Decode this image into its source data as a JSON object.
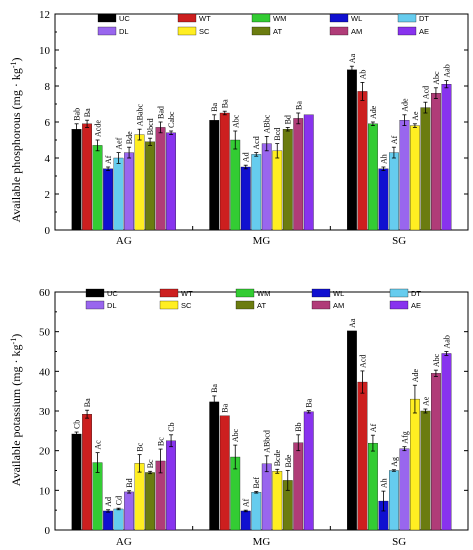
{
  "colors": {
    "UC": "#000000",
    "WT": "#cc1f1f",
    "WM": "#33cc33",
    "WL": "#1010d0",
    "DT": "#66ccee",
    "DL": "#9966ee",
    "SC": "#ffee22",
    "AT": "#6b7c10",
    "AM": "#b03c78",
    "AE": "#8833ee"
  },
  "chart_data": [
    {
      "type": "bar",
      "ylabel_main": "Available phosphorous (mg",
      "ylabel_unit": "kg",
      "ylabel_sup": "-1",
      "ylim": [
        0,
        12
      ],
      "yticks": [
        "0",
        "2",
        "4",
        "6",
        "8",
        "10",
        "12"
      ],
      "categories": [
        "AG",
        "MG",
        "SG"
      ],
      "legend": [
        "UC",
        "WT",
        "WM",
        "WL",
        "DT",
        "DL",
        "SC",
        "AT",
        "AM",
        "AE"
      ],
      "series": [
        {
          "name": "UC",
          "values": [
            5.6,
            6.1,
            8.9
          ],
          "errors": [
            0.3,
            0.3,
            0.2
          ],
          "labels": [
            "Bab",
            "Ba",
            "Aa"
          ]
        },
        {
          "name": "WT",
          "values": [
            5.9,
            6.5,
            7.7
          ],
          "errors": [
            0.2,
            0.1,
            0.5
          ],
          "labels": [
            "Ba",
            "Ba",
            "Ab"
          ]
        },
        {
          "name": "WM",
          "values": [
            4.7,
            5.0,
            5.9
          ],
          "errors": [
            0.3,
            0.5,
            0.1
          ],
          "labels": [
            "Acde",
            "Abc",
            "Ade"
          ]
        },
        {
          "name": "WL",
          "values": [
            3.4,
            3.5,
            3.4
          ],
          "errors": [
            0.1,
            0.1,
            0.1
          ],
          "labels": [
            "Af",
            "Ad",
            "Ah"
          ]
        },
        {
          "name": "DT",
          "values": [
            4.0,
            4.2,
            4.3
          ],
          "errors": [
            0.3,
            0.1,
            0.3
          ],
          "labels": [
            "Aef",
            "Acd",
            "Af"
          ]
        },
        {
          "name": "DL",
          "values": [
            4.3,
            4.8,
            6.1
          ],
          "errors": [
            0.3,
            0.4,
            0.3
          ],
          "labels": [
            "Bde",
            "ABbc",
            "Ade"
          ]
        },
        {
          "name": "SC",
          "values": [
            5.3,
            4.4,
            5.8
          ],
          "errors": [
            0.3,
            0.4,
            0.1
          ],
          "labels": [
            "ABabc",
            "Bcd",
            "Ae"
          ]
        },
        {
          "name": "AT",
          "values": [
            4.9,
            5.6,
            6.8
          ],
          "errors": [
            0.2,
            0.1,
            0.3
          ],
          "labels": [
            "Bbcd",
            "Bd",
            "Acd"
          ]
        },
        {
          "name": "AM",
          "values": [
            5.7,
            6.2,
            7.6
          ],
          "errors": [
            0.3,
            0.3,
            0.3
          ],
          "labels": [
            "Bad",
            "Ba",
            "Abc"
          ]
        },
        {
          "name": "AE",
          "values": [
            5.4,
            6.4,
            8.1
          ],
          "errors": [
            0.1,
            0.0,
            0.2
          ],
          "labels": [
            "Cabc",
            "",
            "Aab"
          ]
        }
      ]
    },
    {
      "type": "bar",
      "ylabel_main": "Available potassium (mg",
      "ylabel_unit": "kg",
      "ylabel_sup": "-1",
      "ylim": [
        0,
        60
      ],
      "yticks": [
        "0",
        "10",
        "20",
        "30",
        "40",
        "50",
        "60"
      ],
      "categories": [
        "AG",
        "MG",
        "SG"
      ],
      "legend": [
        "UC",
        "WT",
        "WM",
        "WL",
        "DT",
        "DL",
        "SC",
        "AT",
        "AM",
        "AE"
      ],
      "series": [
        {
          "name": "UC",
          "values": [
            24.2,
            32.3,
            50.2
          ],
          "errors": [
            0.5,
            1.5,
            0.0
          ],
          "labels": [
            "Cb",
            "Ba",
            "Aa"
          ]
        },
        {
          "name": "WT",
          "values": [
            29.2,
            28.8,
            37.3
          ],
          "errors": [
            1.0,
            0.0,
            2.8
          ],
          "labels": [
            "Ba",
            "Ba",
            "Acd"
          ]
        },
        {
          "name": "WM",
          "values": [
            17.0,
            18.4,
            21.9
          ],
          "errors": [
            2.5,
            3.0,
            2.0
          ],
          "labels": [
            "Ac",
            "Abc",
            "Af"
          ]
        },
        {
          "name": "WL",
          "values": [
            4.8,
            4.8,
            7.3
          ],
          "errors": [
            0.3,
            0.2,
            2.5
          ],
          "labels": [
            "Ad",
            "Af",
            "Ah"
          ]
        },
        {
          "name": "DT",
          "values": [
            5.3,
            9.5,
            15.0
          ],
          "errors": [
            0.2,
            0.2,
            0.2
          ],
          "labels": [
            "Cd",
            "Bef",
            "Ag"
          ]
        },
        {
          "name": "DL",
          "values": [
            9.6,
            16.7,
            20.5
          ],
          "errors": [
            0.3,
            2.0,
            0.5
          ],
          "labels": [
            "Bd",
            "ABbcd",
            "Afg"
          ]
        },
        {
          "name": "SC",
          "values": [
            16.8,
            14.8,
            33.0
          ],
          "errors": [
            2.2,
            0.5,
            3.5
          ],
          "labels": [
            "Bc",
            "Bcde",
            "Ade"
          ]
        },
        {
          "name": "AT",
          "values": [
            14.5,
            12.5,
            30.0
          ],
          "errors": [
            0.3,
            2.5,
            0.5
          ],
          "labels": [
            "Bc",
            "Bde",
            "Ae"
          ]
        },
        {
          "name": "AM",
          "values": [
            17.4,
            22.0,
            39.5
          ],
          "errors": [
            3.0,
            2.0,
            0.8
          ],
          "labels": [
            "Bc",
            "Bb",
            "Abc"
          ]
        },
        {
          "name": "AE",
          "values": [
            22.5,
            29.8,
            44.5
          ],
          "errors": [
            1.5,
            0.3,
            0.5
          ],
          "labels": [
            "Cb",
            "Ba",
            "Aab"
          ]
        }
      ]
    }
  ]
}
